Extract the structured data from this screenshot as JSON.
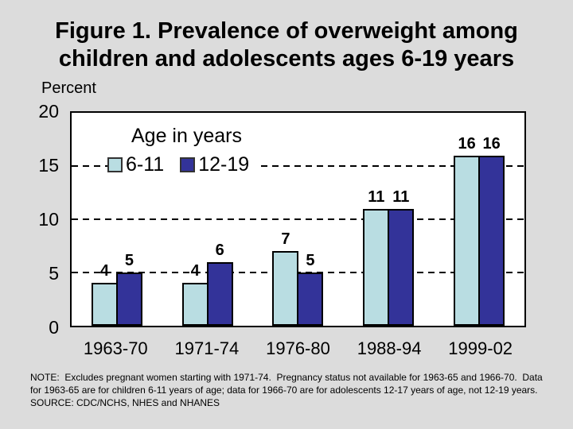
{
  "slide": {
    "title_line1": "Figure 1. Prevalence of overweight among",
    "title_line2": "children and adolescents ages 6-19 years",
    "y_axis_title": "Percent",
    "note_lines": [
      "NOTE:  Excludes pregnant women starting with 1971-74.  Pregnancy status not available for 1963-65 and 1966-70.  Data",
      "for 1963-65 are for children 6-11 years of age; data for 1966-70 are for adolescents 12-17 years of age, not 12-19 years.",
      "SOURCE: CDC/NCHS, NHES and NHANES"
    ]
  },
  "legend": {
    "title": "Age in years",
    "items": [
      {
        "label": "6-11",
        "color": "#B9DDE2"
      },
      {
        "label": "12-19",
        "color": "#333399"
      }
    ]
  },
  "chart_data": {
    "type": "bar",
    "title": "Figure 1. Prevalence of overweight among children and adolescents ages 6-19 years",
    "categories": [
      "1963-70",
      "1971-74",
      "1976-80",
      "1988-94",
      "1999-02"
    ],
    "series": [
      {
        "name": "6-11",
        "color": "#B9DDE2",
        "values": [
          4,
          4,
          7,
          11,
          16
        ]
      },
      {
        "name": "12-19",
        "color": "#333399",
        "values": [
          5,
          6,
          5,
          11,
          16
        ]
      }
    ],
    "xlabel": "",
    "ylabel": "Percent",
    "ylim": [
      0,
      20
    ],
    "y_ticks": [
      20,
      15,
      10,
      5,
      0
    ],
    "gridlines_at": [
      15,
      10,
      5
    ],
    "grid_style": "dashed-horizontal",
    "legend_position": "top-left-inside",
    "bar_labels": true
  },
  "colors": {
    "background": "#DCDCDC",
    "plot_background": "#FFFFFF",
    "axis_border": "#000000",
    "text": "#000000"
  }
}
